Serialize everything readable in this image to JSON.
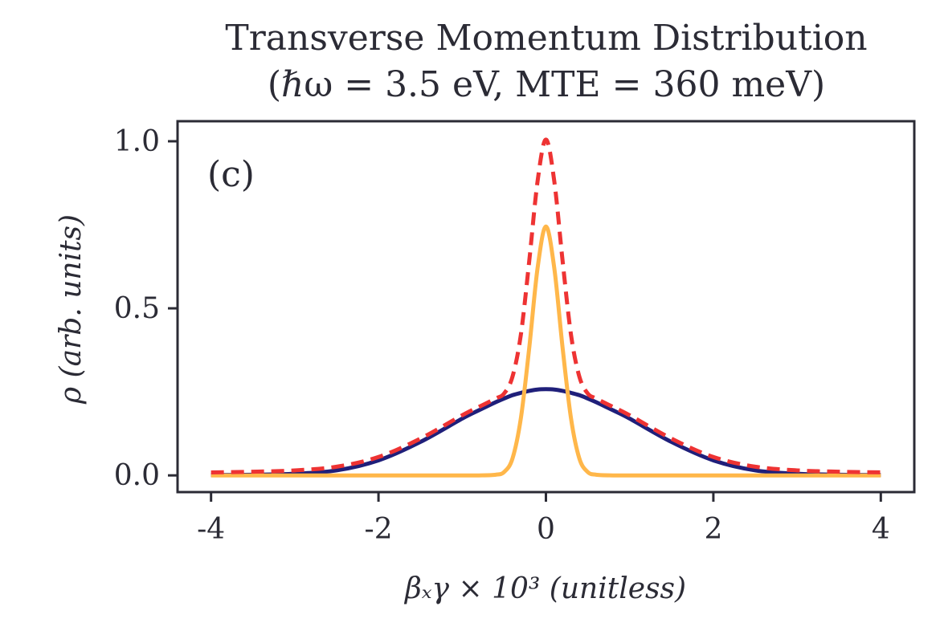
{
  "chart_data": {
    "type": "line",
    "title_line1": "Transverse Momentum Distribution",
    "title_line2": "(ℏω = 3.5 eV, MTE = 360 meV)",
    "panel_label": "(c)",
    "xlabel": "βₓγ × 10³ (unitless)",
    "ylabel": "ρ (arb. units)",
    "xlim": [
      -4.4,
      4.4
    ],
    "ylim": [
      -0.05,
      1.06
    ],
    "xticks": [
      -4,
      -2,
      0,
      2,
      4
    ],
    "xtick_labels": [
      "-4",
      "-2",
      "0",
      "2",
      "4"
    ],
    "yticks": [
      0.0,
      0.5,
      1.0
    ],
    "ytick_labels": [
      "0.0",
      "0.5",
      "1.0"
    ],
    "grid": false,
    "legend": "none",
    "colors": {
      "broad": "#1f1f7a",
      "narrow": "#ffb74a",
      "total": "#ee3333",
      "axes": "#2b2b35"
    },
    "x": [
      -4.0,
      -3.5,
      -3.0,
      -2.5,
      -2.0,
      -1.5,
      -1.0,
      -0.8,
      -0.6,
      -0.5,
      -0.4,
      -0.3,
      -0.2,
      -0.1,
      0.0,
      0.1,
      0.2,
      0.3,
      0.4,
      0.5,
      0.6,
      0.8,
      1.0,
      1.5,
      2.0,
      2.5,
      3.0,
      3.5,
      4.0
    ],
    "series": [
      {
        "values": [
          0.001,
          0.002,
          0.005,
          0.015,
          0.045,
          0.1,
          0.17,
          0.195,
          0.219,
          0.23,
          0.24,
          0.247,
          0.253,
          0.257,
          0.258,
          0.257,
          0.253,
          0.247,
          0.24,
          0.23,
          0.219,
          0.195,
          0.17,
          0.1,
          0.045,
          0.015,
          0.005,
          0.002,
          0.001
        ],
        "style": "solid"
      },
      {
        "values": [
          0.0,
          0.0,
          0.0,
          0.0,
          0.0,
          0.0,
          0.0,
          0.0,
          0.002,
          0.01,
          0.05,
          0.17,
          0.38,
          0.62,
          0.745,
          0.62,
          0.38,
          0.17,
          0.05,
          0.01,
          0.002,
          0.0,
          0.0,
          0.0,
          0.0,
          0.0,
          0.0,
          0.0,
          0.0
        ],
        "style": "solid"
      },
      {
        "values": [
          0.009,
          0.011,
          0.015,
          0.026,
          0.055,
          0.11,
          0.18,
          0.205,
          0.23,
          0.245,
          0.295,
          0.42,
          0.64,
          0.88,
          1.005,
          0.88,
          0.64,
          0.42,
          0.295,
          0.245,
          0.23,
          0.205,
          0.18,
          0.11,
          0.055,
          0.026,
          0.015,
          0.011,
          0.009
        ],
        "style": "dashed"
      }
    ]
  }
}
